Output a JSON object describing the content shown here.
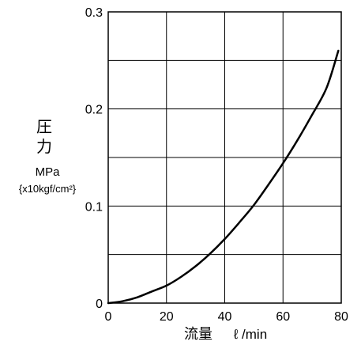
{
  "chart_data": {
    "type": "line",
    "title": "",
    "ylabel": {
      "line1": "圧",
      "line2": "力",
      "unit": "MPa",
      "unit_alt": "{x10kgf/cm²}"
    },
    "xlabel": {
      "main": "流量",
      "unit": "ℓ /min"
    },
    "xlim": [
      0,
      80
    ],
    "ylim": [
      0,
      0.3
    ],
    "x_ticks": [
      0,
      20,
      40,
      60,
      80
    ],
    "x_tick_labels": [
      "0",
      "20",
      "40",
      "60",
      "80"
    ],
    "y_ticks": [
      0,
      0.1,
      0.2,
      0.3
    ],
    "y_tick_labels": [
      "0",
      "0.1",
      "0.2",
      "0.3"
    ],
    "x_grid": [
      0,
      20,
      40,
      60,
      80
    ],
    "y_grid": [
      0,
      0.05,
      0.1,
      0.15,
      0.2,
      0.25,
      0.3
    ],
    "grid": true,
    "legend": "none",
    "series": [
      {
        "color": "#000000",
        "x": [
          0,
          5,
          10,
          15,
          20,
          25,
          30,
          35,
          40,
          45,
          50,
          55,
          60,
          65,
          70,
          75,
          79
        ],
        "y": [
          0,
          0.002,
          0.006,
          0.012,
          0.018,
          0.027,
          0.038,
          0.051,
          0.066,
          0.083,
          0.101,
          0.122,
          0.144,
          0.168,
          0.194,
          0.222,
          0.26
        ]
      }
    ]
  }
}
